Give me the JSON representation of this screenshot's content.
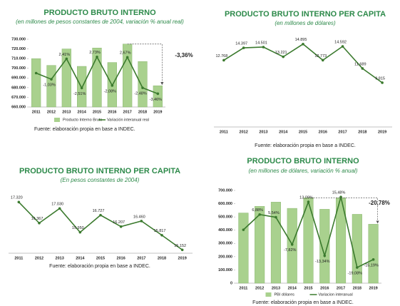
{
  "chart_data": [
    {
      "type": "bar",
      "title": "PRODUCTO BRUTO INTERNO",
      "subtitle": "(en millones de pesos constantes de 2004, variación % anual real)",
      "categories": [
        "2011",
        "2012",
        "2013",
        "2014",
        "2015",
        "2016",
        "2017",
        "2018",
        "2019"
      ],
      "series": [
        {
          "name": "Producto Interno Bruto",
          "type": "bar",
          "color": "#a9d18e",
          "values": [
            710000,
            703000,
            720000,
            702000,
            721000,
            706000,
            725000,
            707000,
            682000
          ]
        },
        {
          "name": "Variación interanual real",
          "type": "line",
          "axis": "y2",
          "color": "#3b7a2e",
          "values": [
            0,
            -1.03,
            2.41,
            -2.51,
            2.73,
            -2.08,
            2.67,
            -2.48,
            -3.46
          ],
          "value_labels": [
            null,
            "-1,03%",
            "2,41%",
            "-2,51%",
            "2,73%",
            "-2,08%",
            "2,67%",
            "-2,48%",
            "-3,46%"
          ]
        }
      ],
      "ylim": [
        660000,
        730000
      ],
      "yticks": [
        {
          "value": 660000,
          "label": "660.000"
        },
        {
          "value": 670000,
          "label": "670.000"
        },
        {
          "value": 680000,
          "label": "680.000"
        },
        {
          "value": 690000,
          "label": "690.000"
        },
        {
          "value": 700000,
          "label": "700.000"
        },
        {
          "value": 710000,
          "label": "710.000"
        },
        {
          "value": 720000,
          "label": "720.000"
        },
        {
          "value": 730000,
          "label": "730.000"
        }
      ],
      "y2lim": [
        -5.7,
        5.7
      ],
      "legend": "bottom",
      "annotation": "-3,36%",
      "annotation_color": "#e03020",
      "source": "Fuente: elaboración propia en base a INDEC."
    },
    {
      "type": "line",
      "title": "PRODUCTO BRUTO INTERNO PER CAPITA",
      "subtitle": "(en millones de dólares)",
      "categories": [
        "2011",
        "2012",
        "2013",
        "2014",
        "2015",
        "2016",
        "2017",
        "2018",
        "2019"
      ],
      "values": [
        12768,
        14397,
        14501,
        13221,
        14895,
        12773,
        14592,
        11689,
        9815
      ],
      "value_labels": [
        "12.768",
        "14.397",
        "14.501",
        "13.221",
        "14.895",
        "12.773",
        "14.592",
        "11.689",
        "9.815"
      ],
      "color": "#3b7a2e",
      "ylim": [
        4000,
        16000
      ],
      "source": "Fuente: elaboración propia en base a INDEC."
    },
    {
      "type": "line",
      "title": "PRODUCTO BRUTO INTERNO PER CAPITA",
      "subtitle": "(En pesos constantes de 2004)",
      "categories": [
        "2011",
        "2012",
        "2013",
        "2014",
        "2015",
        "2016",
        "2017",
        "2018",
        "2019"
      ],
      "values": [
        17320,
        16367,
        17030,
        15950,
        16727,
        16207,
        16460,
        15817,
        15152
      ],
      "value_labels": [
        "17.320",
        "16.367",
        "17.030",
        "15.950",
        "16.727",
        "16.207",
        "16.460",
        "15.817",
        "15.152"
      ],
      "color": "#3b7a2e",
      "ylim": [
        15000,
        17750
      ],
      "source": "Fuente: elaboración propia en base a INDEC."
    },
    {
      "type": "bar",
      "title": "PRODUCTO BRUTO INTERNO",
      "subtitle": "(en millones de dólares, variación % anual)",
      "categories": [
        "2011",
        "2012",
        "2013",
        "2014",
        "2015",
        "2016",
        "2017",
        "2018",
        "2019"
      ],
      "series": [
        {
          "name": "PBI dólares",
          "type": "bar",
          "color": "#a9d18e",
          "values": [
            530000,
            580000,
            612000,
            565000,
            645000,
            558000,
            645000,
            520000,
            445000
          ]
        },
        {
          "name": "Variacion interanual",
          "type": "line",
          "axis": "y2",
          "color": "#3b7a2e",
          "values": [
            -0.6,
            6.88,
            5.54,
            -7.82,
            13.09,
            -13.34,
            15.48,
            -19.08,
            -15.19
          ],
          "value_labels": [
            null,
            "6,88%",
            "5,54%",
            "-7,82%",
            "13,09%",
            "-13,34%",
            "15,48%",
            "-19,08%",
            "-15,19%"
          ]
        }
      ],
      "ylim": [
        0,
        700000
      ],
      "yticks": [
        0,
        {
          "value": 100000,
          "label": "100.000"
        },
        {
          "value": 200000,
          "label": "200.000"
        },
        {
          "value": 300000,
          "label": "300.000"
        },
        {
          "value": 400000,
          "label": "400.000"
        },
        {
          "value": 500000,
          "label": "500.000"
        },
        {
          "value": 600000,
          "label": "600.000"
        },
        {
          "value": 700000,
          "label": "700.000"
        }
      ],
      "y2lim": [
        -26.8,
        18.7
      ],
      "legend": "bottom",
      "annotation": "-20,78%",
      "annotation_color": "#e03020",
      "source": "Fuente: elaboración propia en base a INDEC."
    }
  ]
}
